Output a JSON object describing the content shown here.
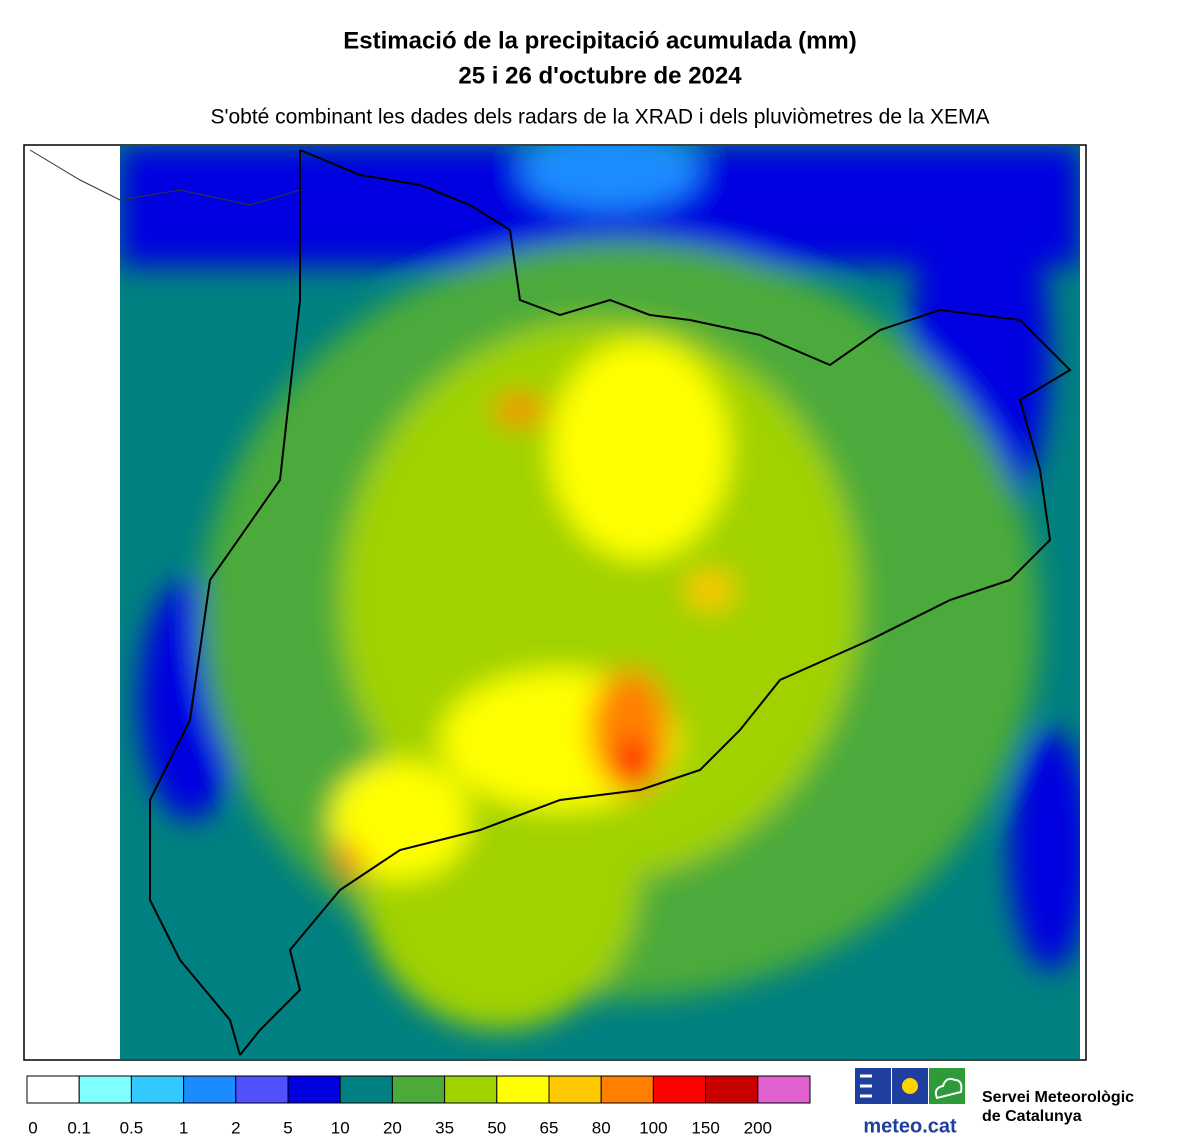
{
  "header": {
    "title": "Estimació de la precipitació acumulada (mm)",
    "date": "25 i 26 d'octubre de 2024",
    "subtitle": "S'obté combinant les dades dels radars de la XRAD i dels pluviòmetres de la XEMA"
  },
  "legend": {
    "items": [
      {
        "label": "0",
        "color": "#ffffff"
      },
      {
        "label": "0.1",
        "color": "#80ffff"
      },
      {
        "label": "0.5",
        "color": "#33c8ff"
      },
      {
        "label": "1",
        "color": "#1a8cff"
      },
      {
        "label": "2",
        "color": "#5050ff"
      },
      {
        "label": "5",
        "color": "#0000e0"
      },
      {
        "label": "10",
        "color": "#008080"
      },
      {
        "label": "20",
        "color": "#4caa3a"
      },
      {
        "label": "35",
        "color": "#a0d200"
      },
      {
        "label": "50",
        "color": "#ffff00"
      },
      {
        "label": "65",
        "color": "#ffc800"
      },
      {
        "label": "80",
        "color": "#ff8000"
      },
      {
        "label": "100",
        "color": "#ff0000"
      },
      {
        "label": "150",
        "color": "#c80000"
      },
      {
        "label": "200",
        "color": "#e060d0"
      }
    ]
  },
  "logo": {
    "name": "meteo.cat",
    "org_line1": "Servei Meteorològic",
    "org_line2": "de Catalunya"
  }
}
